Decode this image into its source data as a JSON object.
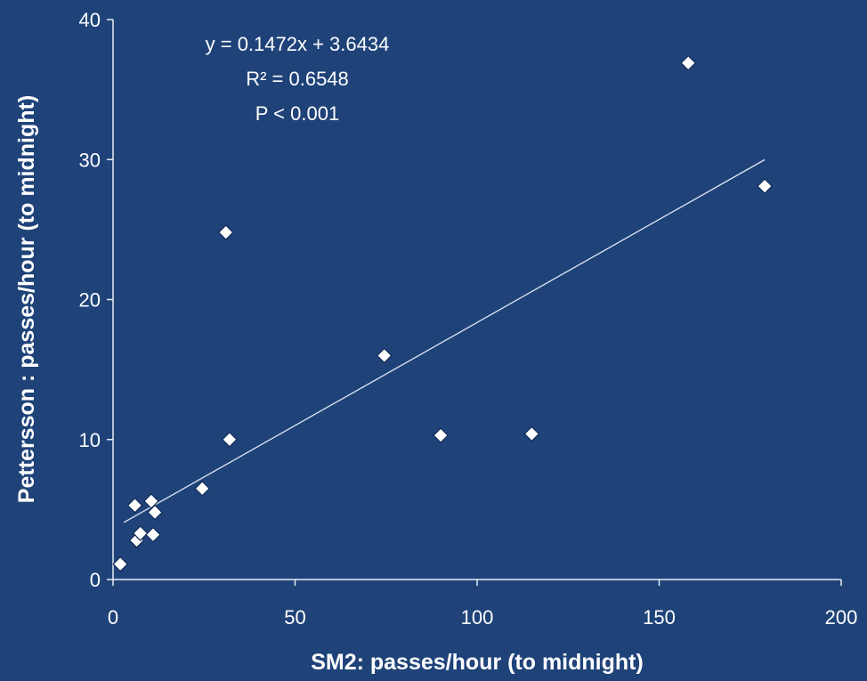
{
  "chart_data": {
    "type": "scatter",
    "title": "",
    "xlabel": "SM2: passes/hour (to midnight)",
    "ylabel": "Pettersson : passes/hour (to midnight)",
    "xlim": [
      0,
      200
    ],
    "ylim": [
      0,
      40
    ],
    "x_ticks": [
      0,
      50,
      100,
      150,
      200
    ],
    "y_ticks": [
      0,
      10,
      20,
      30,
      40
    ],
    "grid": false,
    "legend": "none",
    "annotations": [
      "y = 0.1472x + 3.6434",
      "R² = 0.6548",
      "P < 0.001"
    ],
    "trendline": {
      "slope": 0.1472,
      "intercept": 3.6434,
      "x_range": [
        3,
        179
      ]
    },
    "points": [
      {
        "x": 2,
        "y": 1.1
      },
      {
        "x": 6,
        "y": 5.3
      },
      {
        "x": 6.5,
        "y": 2.8
      },
      {
        "x": 7.5,
        "y": 3.3
      },
      {
        "x": 10.5,
        "y": 5.6
      },
      {
        "x": 11,
        "y": 3.2
      },
      {
        "x": 11.5,
        "y": 4.8
      },
      {
        "x": 24.5,
        "y": 6.5
      },
      {
        "x": 31,
        "y": 24.8
      },
      {
        "x": 32,
        "y": 10
      },
      {
        "x": 74.5,
        "y": 16
      },
      {
        "x": 90,
        "y": 10.3
      },
      {
        "x": 115,
        "y": 10.4
      },
      {
        "x": 158,
        "y": 36.9
      },
      {
        "x": 179,
        "y": 28.1
      }
    ],
    "colors": {
      "background": "#1f4379",
      "marker": "#ffffff",
      "text": "#ffffff",
      "trendline": "#dfe6f0"
    }
  }
}
